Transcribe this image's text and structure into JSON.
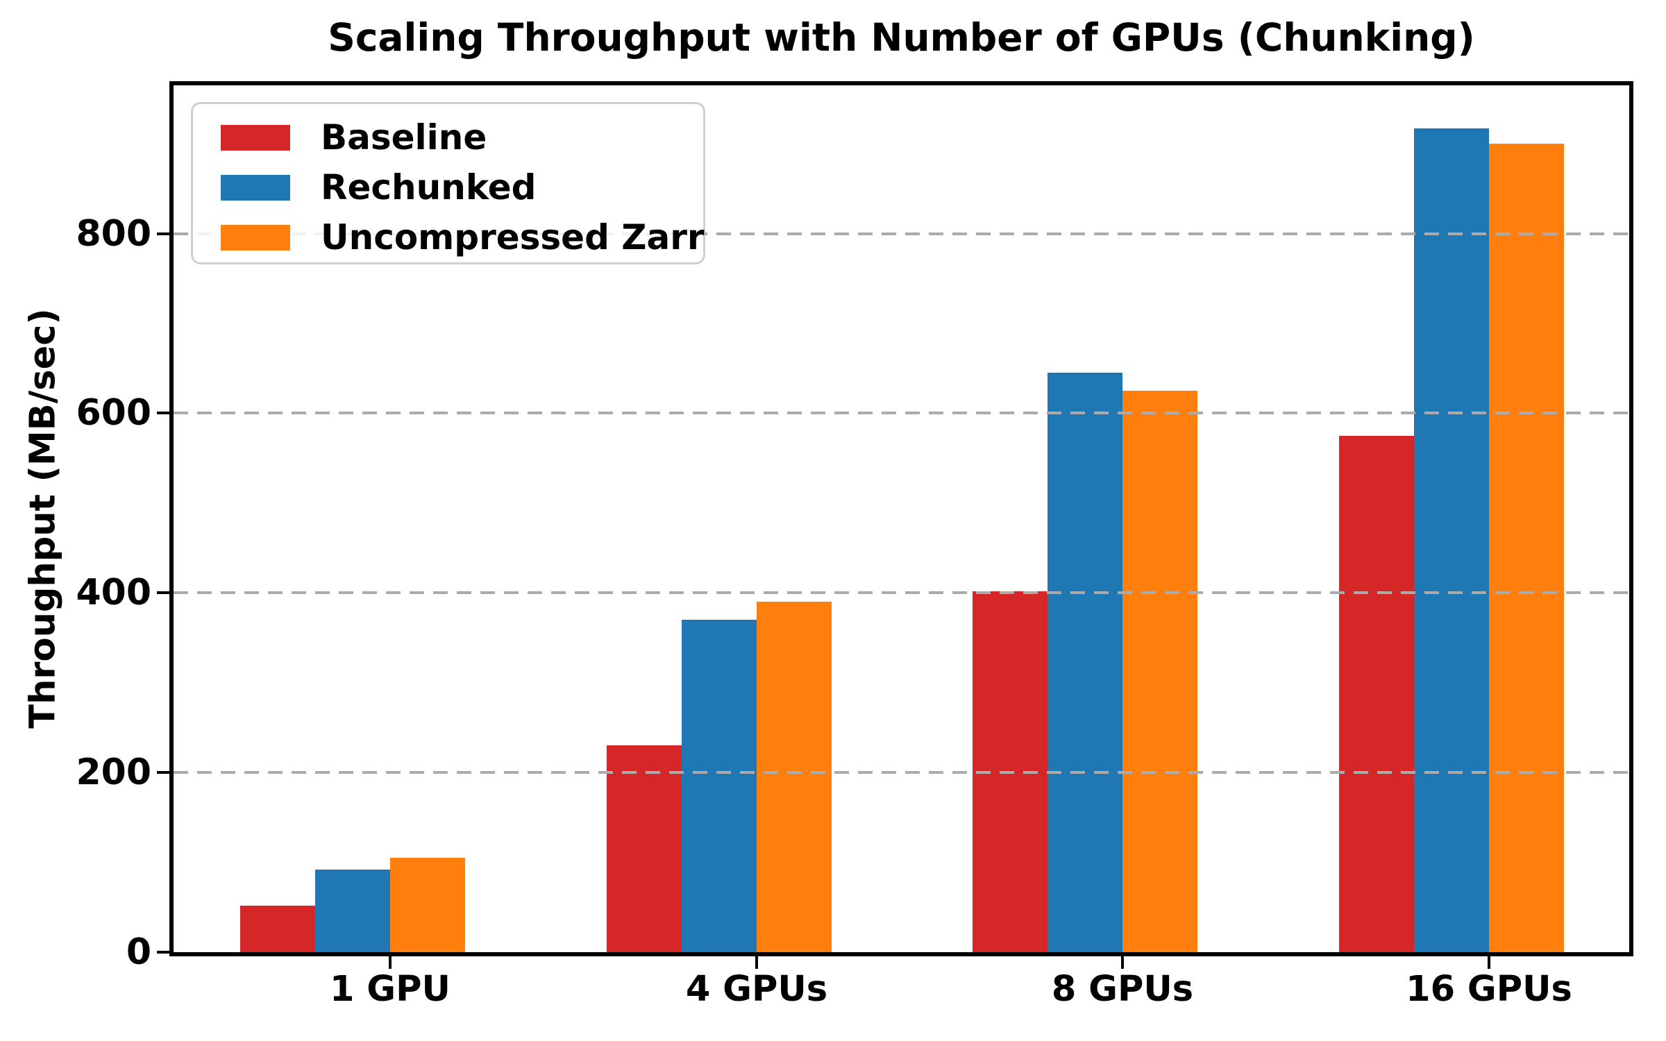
{
  "title": "Scaling Throughput with Number of GPUs (Chunking)",
  "chart_data": {
    "type": "bar",
    "title": "Scaling Throughput with Number of GPUs (Chunking)",
    "xlabel": "",
    "ylabel": "Throughput (MB/sec)",
    "categories": [
      "1 GPU",
      "4 GPUs",
      "8 GPUs",
      "16 GPUs"
    ],
    "series": [
      {
        "name": "Baseline",
        "color": "#d62728",
        "values": [
          52,
          230,
          402,
          575
        ]
      },
      {
        "name": "Rechunked",
        "color": "#1f77b4",
        "values": [
          92,
          370,
          645,
          917
        ]
      },
      {
        "name": "Uncompressed Zarr",
        "color": "#ff7f0e",
        "values": [
          105,
          390,
          625,
          900
        ]
      }
    ],
    "yticks": [
      0,
      200,
      400,
      600,
      800
    ],
    "ylim": [
      0,
      965
    ],
    "grid": "horizontal dashed gray, drawn above bars",
    "legend_position": "upper left",
    "background": "#ffffff",
    "axis_color": "#000000",
    "gridline_color": "#ababab"
  }
}
